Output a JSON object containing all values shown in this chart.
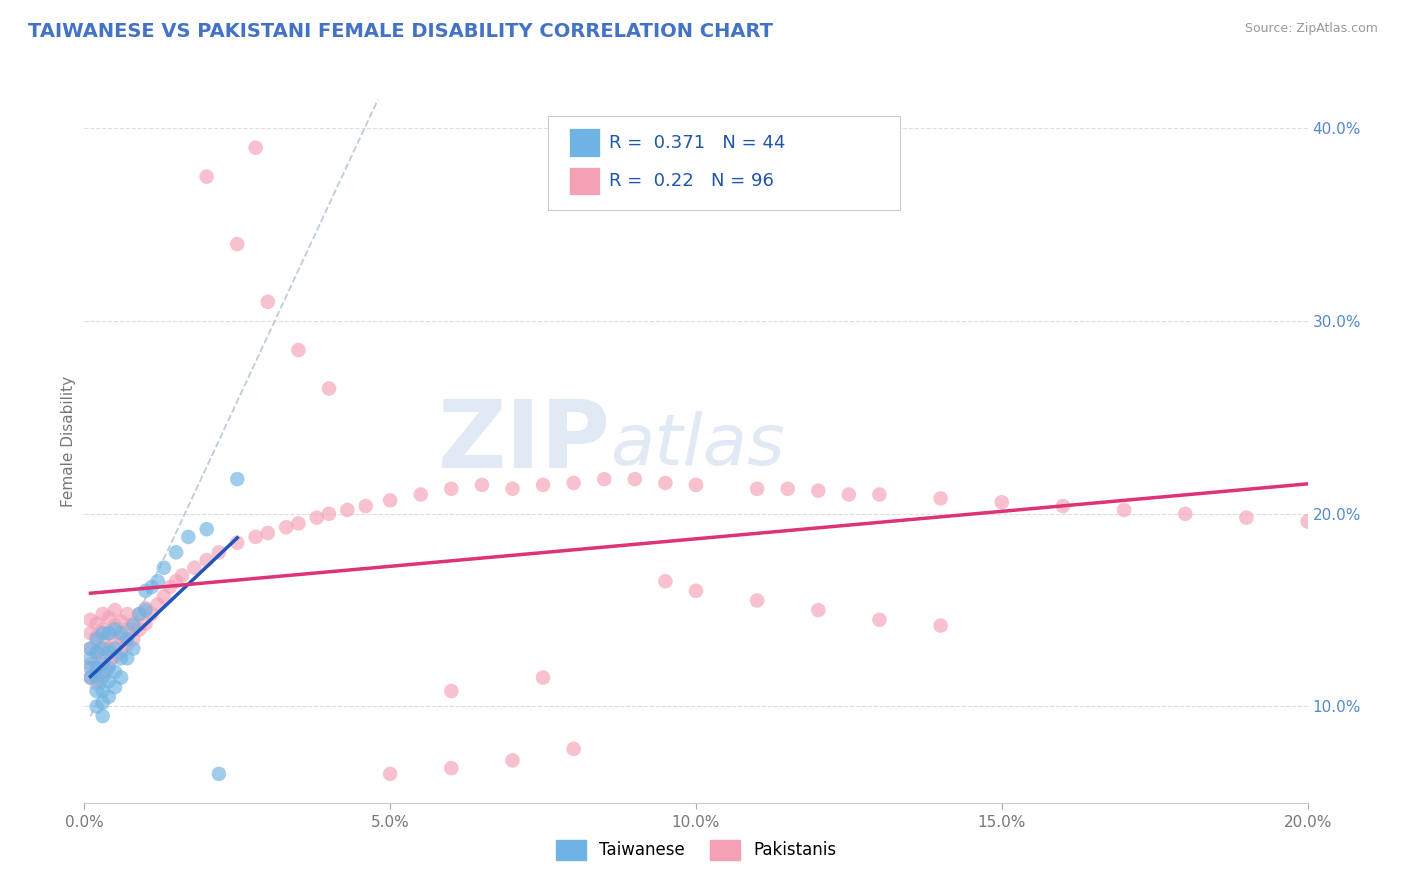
{
  "title": "TAIWANESE VS PAKISTANI FEMALE DISABILITY CORRELATION CHART",
  "source": "Source: ZipAtlas.com",
  "ylabel": "Female Disability",
  "xlim": [
    0.0,
    0.2
  ],
  "ylim": [
    0.05,
    0.425
  ],
  "xticks": [
    0.0,
    0.05,
    0.1,
    0.15,
    0.2
  ],
  "xticklabels": [
    "0.0%",
    "5.0%",
    "10.0%",
    "15.0%",
    "20.0%"
  ],
  "yticks_right": [
    0.1,
    0.2,
    0.3,
    0.4
  ],
  "yticklabels_right": [
    "10.0%",
    "20.0%",
    "30.0%",
    "40.0%"
  ],
  "title_color": "#4472C4",
  "title_fontsize": 14,
  "background_color": "#ffffff",
  "taiwanese_color": "#6EB3E3",
  "pakistani_color": "#F4A0B5",
  "taiwanese_line_color": "#2255BB",
  "pakistani_line_color": "#DD3377",
  "dashed_line_color": "#BBCCDD",
  "R_taiwanese": 0.371,
  "N_taiwanese": 44,
  "R_pakistani": 0.22,
  "N_pakistani": 96,
  "watermark_zip": "ZIP",
  "watermark_atlas": "atlas",
  "tw_x": [
    0.001,
    0.001,
    0.001,
    0.001,
    0.002,
    0.002,
    0.002,
    0.002,
    0.002,
    0.002,
    0.003,
    0.003,
    0.003,
    0.003,
    0.003,
    0.003,
    0.003,
    0.004,
    0.004,
    0.004,
    0.004,
    0.004,
    0.005,
    0.005,
    0.005,
    0.005,
    0.006,
    0.006,
    0.006,
    0.007,
    0.007,
    0.008,
    0.008,
    0.009,
    0.01,
    0.01,
    0.011,
    0.012,
    0.013,
    0.015,
    0.017,
    0.02,
    0.022,
    0.025
  ],
  "tw_y": [
    0.115,
    0.12,
    0.125,
    0.13,
    0.1,
    0.108,
    0.115,
    0.12,
    0.128,
    0.135,
    0.095,
    0.102,
    0.108,
    0.115,
    0.122,
    0.13,
    0.138,
    0.105,
    0.113,
    0.12,
    0.128,
    0.138,
    0.11,
    0.118,
    0.13,
    0.14,
    0.115,
    0.125,
    0.138,
    0.125,
    0.135,
    0.13,
    0.142,
    0.148,
    0.15,
    0.16,
    0.162,
    0.165,
    0.172,
    0.18,
    0.188,
    0.192,
    0.065,
    0.218
  ],
  "pk_x": [
    0.001,
    0.001,
    0.001,
    0.001,
    0.001,
    0.002,
    0.002,
    0.002,
    0.002,
    0.002,
    0.003,
    0.003,
    0.003,
    0.003,
    0.003,
    0.004,
    0.004,
    0.004,
    0.004,
    0.005,
    0.005,
    0.005,
    0.005,
    0.006,
    0.006,
    0.006,
    0.007,
    0.007,
    0.007,
    0.008,
    0.008,
    0.009,
    0.009,
    0.01,
    0.01,
    0.011,
    0.012,
    0.013,
    0.014,
    0.015,
    0.016,
    0.018,
    0.02,
    0.022,
    0.025,
    0.028,
    0.03,
    0.033,
    0.035,
    0.038,
    0.04,
    0.043,
    0.046,
    0.05,
    0.055,
    0.06,
    0.065,
    0.07,
    0.075,
    0.08,
    0.085,
    0.09,
    0.095,
    0.1,
    0.11,
    0.115,
    0.12,
    0.125,
    0.13,
    0.14,
    0.15,
    0.16,
    0.17,
    0.18,
    0.19,
    0.2,
    0.02,
    0.025,
    0.03,
    0.035,
    0.04,
    0.028,
    0.095,
    0.1,
    0.11,
    0.12,
    0.13,
    0.14,
    0.06,
    0.07,
    0.08,
    0.06,
    0.075,
    0.05
  ],
  "pk_y": [
    0.115,
    0.122,
    0.13,
    0.138,
    0.145,
    0.112,
    0.12,
    0.128,
    0.136,
    0.143,
    0.118,
    0.125,
    0.133,
    0.14,
    0.148,
    0.122,
    0.13,
    0.138,
    0.146,
    0.126,
    0.134,
    0.142,
    0.15,
    0.128,
    0.136,
    0.144,
    0.132,
    0.14,
    0.148,
    0.135,
    0.143,
    0.14,
    0.148,
    0.143,
    0.151,
    0.148,
    0.153,
    0.157,
    0.162,
    0.165,
    0.168,
    0.172,
    0.176,
    0.18,
    0.185,
    0.188,
    0.19,
    0.193,
    0.195,
    0.198,
    0.2,
    0.202,
    0.204,
    0.207,
    0.21,
    0.213,
    0.215,
    0.213,
    0.215,
    0.216,
    0.218,
    0.218,
    0.216,
    0.215,
    0.213,
    0.213,
    0.212,
    0.21,
    0.21,
    0.208,
    0.206,
    0.204,
    0.202,
    0.2,
    0.198,
    0.196,
    0.375,
    0.34,
    0.31,
    0.285,
    0.265,
    0.39,
    0.165,
    0.16,
    0.155,
    0.15,
    0.145,
    0.142,
    0.068,
    0.072,
    0.078,
    0.108,
    0.115,
    0.065
  ]
}
